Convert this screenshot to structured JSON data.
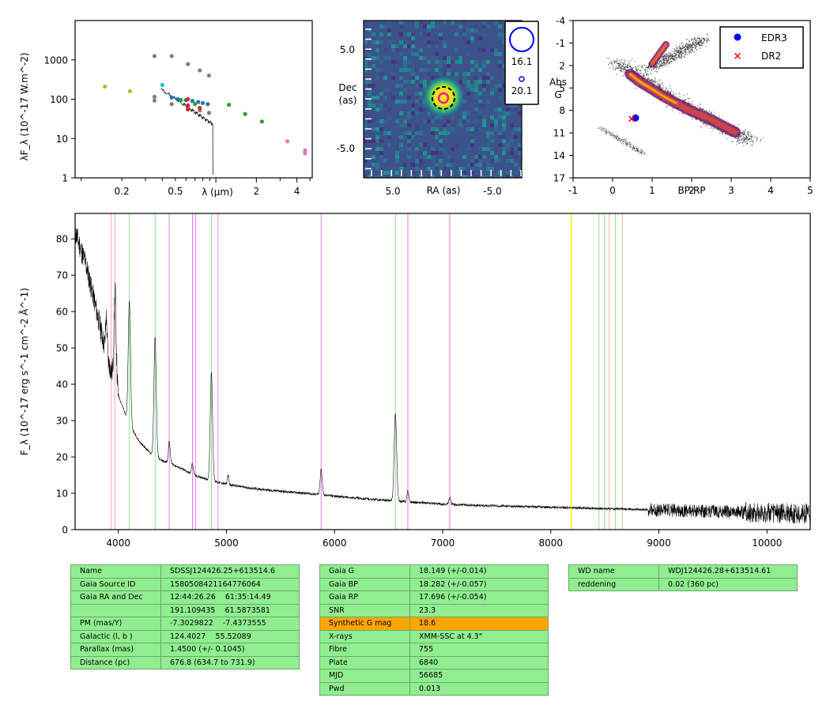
{
  "sed_panel": {
    "ylabel": "λF_λ (10^-17 W.m^-2)",
    "xlabel": "λ (μm)",
    "y_ticks": [
      "1",
      "10",
      "100",
      "1000"
    ],
    "x_ticks": [
      "0.2",
      "0.5",
      "2",
      "4"
    ],
    "points": [
      {
        "x": 0.15,
        "y": 210,
        "color": "#bcbd22"
      },
      {
        "x": 0.23,
        "y": 160,
        "color": "#bcbd22"
      },
      {
        "x": 0.35,
        "y": 1250,
        "color": "#7f7f7f"
      },
      {
        "x": 0.47,
        "y": 1250,
        "color": "#7f7f7f"
      },
      {
        "x": 0.62,
        "y": 780,
        "color": "#7f7f7f"
      },
      {
        "x": 0.76,
        "y": 540,
        "color": "#7f7f7f"
      },
      {
        "x": 0.89,
        "y": 400,
        "color": "#7f7f7f"
      },
      {
        "x": 0.35,
        "y": 115,
        "color": "#7f7f7f"
      },
      {
        "x": 0.35,
        "y": 92,
        "color": "#7f7f7f"
      },
      {
        "x": 0.47,
        "y": 75,
        "color": "#7f7f7f"
      },
      {
        "x": 0.62,
        "y": 60,
        "color": "#7f7f7f"
      },
      {
        "x": 0.76,
        "y": 52,
        "color": "#7f7f7f"
      },
      {
        "x": 0.89,
        "y": 45,
        "color": "#7f7f7f"
      },
      {
        "x": 0.4,
        "y": 230,
        "color": "#17becf"
      },
      {
        "x": 0.47,
        "y": 110,
        "color": "#1f77b4"
      },
      {
        "x": 0.52,
        "y": 100,
        "color": "#1f77b4"
      },
      {
        "x": 0.6,
        "y": 95,
        "color": "#1f77b4"
      },
      {
        "x": 0.67,
        "y": 90,
        "color": "#1f77b4"
      },
      {
        "x": 0.74,
        "y": 85,
        "color": "#1f77b4"
      },
      {
        "x": 0.8,
        "y": 80,
        "color": "#1f77b4"
      },
      {
        "x": 0.87,
        "y": 75,
        "color": "#1f77b4"
      },
      {
        "x": 0.62,
        "y": 100,
        "color": "#d62728"
      },
      {
        "x": 0.62,
        "y": 70,
        "color": "#d62728"
      },
      {
        "x": 0.62,
        "y": 55,
        "color": "#d62728"
      },
      {
        "x": 0.76,
        "y": 60,
        "color": "#d62728"
      },
      {
        "x": 0.55,
        "y": 95,
        "color": "#2ca02c"
      },
      {
        "x": 0.7,
        "y": 75,
        "color": "#2ca02c"
      },
      {
        "x": 1.25,
        "y": 72,
        "color": "#2ca02c"
      },
      {
        "x": 1.65,
        "y": 42,
        "color": "#2ca02c"
      },
      {
        "x": 2.2,
        "y": 27,
        "color": "#2ca02c"
      },
      {
        "x": 3.4,
        "y": 8.5,
        "color": "#e377c2"
      },
      {
        "x": 4.6,
        "y": 5.0,
        "color": "#e377c2"
      },
      {
        "x": 4.6,
        "y": 4.2,
        "color": "#e377c2"
      }
    ]
  },
  "image_panel": {
    "ylabel_line1": "Dec",
    "ylabel_line2": "(as)",
    "xlabel": "RA (as)",
    "y_ticks": [
      "5.0",
      "-5.0"
    ],
    "x_ticks": [
      "5.0",
      "-5.0"
    ],
    "legend": [
      {
        "label": "16.1",
        "color": "#0000ff"
      },
      {
        "label": "20.1",
        "color": "#0000ff"
      }
    ]
  },
  "cmd_panel": {
    "ylabel_line1": "Abs",
    "ylabel_line2": "G",
    "xlabel": "BP-RP",
    "y_ticks": [
      "-4",
      "-1",
      "2",
      "5",
      "8",
      "11",
      "14",
      "17"
    ],
    "x_ticks": [
      "-1",
      "0",
      "1",
      "2",
      "3",
      "4",
      "5"
    ],
    "legend": [
      {
        "label": "EDR3",
        "color": "#0000ff"
      },
      {
        "label": "DR2",
        "color": "#ff0000"
      }
    ],
    "points": [
      {
        "series": "EDR3",
        "bp_rp": 0.58,
        "abs_g": 9.0
      },
      {
        "series": "DR2",
        "bp_rp": 0.48,
        "abs_g": 9.1
      }
    ]
  },
  "chart_data": {
    "type": "line",
    "ylabel": "F_λ (10^-17 erg s^-1 cm^-2 Å^-1)",
    "xlim": [
      3600,
      10400
    ],
    "ylim": [
      0,
      87
    ],
    "x_ticks": [
      "4000",
      "5000",
      "6000",
      "7000",
      "8000",
      "9000",
      "10000"
    ],
    "y_ticks": [
      "0",
      "10",
      "20",
      "30",
      "40",
      "50",
      "60",
      "70",
      "80"
    ],
    "continuum": [
      [
        3600,
        82
      ],
      [
        3700,
        73
      ],
      [
        3800,
        60
      ],
      [
        3900,
        47
      ],
      [
        4000,
        37
      ],
      [
        4100,
        29
      ],
      [
        4200,
        24
      ],
      [
        4300,
        21
      ],
      [
        4400,
        19
      ],
      [
        4500,
        18
      ],
      [
        4600,
        16.5
      ],
      [
        4700,
        15
      ],
      [
        4800,
        14
      ],
      [
        4900,
        13.2
      ],
      [
        5000,
        12.5
      ],
      [
        5200,
        11.5
      ],
      [
        5400,
        10.8
      ],
      [
        5600,
        10.3
      ],
      [
        5800,
        9.8
      ],
      [
        6000,
        9.2
      ],
      [
        6200,
        8.7
      ],
      [
        6400,
        8.2
      ],
      [
        6600,
        7.8
      ],
      [
        6800,
        7.4
      ],
      [
        7000,
        7.0
      ],
      [
        7400,
        6.6
      ],
      [
        7800,
        6.3
      ],
      [
        8200,
        6.0
      ],
      [
        8600,
        5.7
      ],
      [
        9000,
        5.4
      ],
      [
        9400,
        5.1
      ],
      [
        9800,
        4.8
      ],
      [
        10000,
        4.6
      ],
      [
        10400,
        4.4
      ]
    ],
    "emission_lines": [
      {
        "x": 3889,
        "peak": 10,
        "width": 10
      },
      {
        "x": 3970,
        "peak": 26,
        "width": 14
      },
      {
        "x": 4102,
        "peak": 34,
        "width": 15
      },
      {
        "x": 4340,
        "peak": 33,
        "width": 15
      },
      {
        "x": 4471,
        "peak": 6,
        "width": 12
      },
      {
        "x": 4686,
        "peak": 3,
        "width": 12
      },
      {
        "x": 4861,
        "peak": 30,
        "width": 15
      },
      {
        "x": 5015,
        "peak": 2.5,
        "width": 10
      },
      {
        "x": 5876,
        "peak": 7,
        "width": 14
      },
      {
        "x": 6563,
        "peak": 24,
        "width": 16
      },
      {
        "x": 6678,
        "peak": 3,
        "width": 12
      },
      {
        "x": 7065,
        "peak": 2,
        "width": 12
      }
    ],
    "reference_lines": [
      {
        "x": 3934,
        "color": "#ff9999"
      },
      {
        "x": 3968,
        "color": "#ff9999"
      },
      {
        "x": 4102,
        "color": "#80e080"
      },
      {
        "x": 4340,
        "color": "#80e080"
      },
      {
        "x": 4471,
        "color": "#e070e0"
      },
      {
        "x": 4686,
        "color": "#e070e0"
      },
      {
        "x": 4713,
        "color": "#e070e0"
      },
      {
        "x": 4861,
        "color": "#80e080"
      },
      {
        "x": 4922,
        "color": "#e070e0"
      },
      {
        "x": 5876,
        "color": "#e070e0"
      },
      {
        "x": 6563,
        "color": "#80e080"
      },
      {
        "x": 6678,
        "color": "#e070e0"
      },
      {
        "x": 7065,
        "color": "#e070e0"
      },
      {
        "x": 8190,
        "color": "#ffff00"
      },
      {
        "x": 8446,
        "color": "#80e080"
      },
      {
        "x": 8498,
        "color": "#80e080"
      },
      {
        "x": 8542,
        "color": "#ff9999"
      },
      {
        "x": 8598,
        "color": "#80e080"
      },
      {
        "x": 8662,
        "color": "#d2b48c"
      }
    ]
  },
  "tables": {
    "left": [
      [
        "Name",
        "SDSSJ124426.25+613514.6"
      ],
      [
        "Gaia Source ID",
        "1580508421164776064"
      ],
      [
        "Gaia RA and Dec",
        "12:44:26.26    61:35:14.49"
      ],
      [
        "",
        "191.109435    61.5873581"
      ],
      [
        "PM (mas/Y)",
        "-7.3029822    -7.4373555"
      ],
      [
        "Galactic (l, b )",
        "124.4027    55.52089"
      ],
      [
        "Parallax (mas)",
        "1.4500 (+/- 0.1045)"
      ],
      [
        "Distance (pc)",
        "676.8 (634.7 to 731.9)"
      ]
    ],
    "middle": [
      [
        "Gaia G",
        "18.149 (+/-0.014)"
      ],
      [
        "Gaia BP",
        "18.282 (+/-0.057)"
      ],
      [
        "Gaia RP",
        "17.696 (+/-0.054)"
      ],
      [
        "SNR",
        "23.3"
      ],
      [
        "Synthetic G mag",
        "18.6"
      ],
      [
        "X-rays",
        "XMM-SSC at 4.3\""
      ],
      [
        "Fibre",
        "755"
      ],
      [
        "Plate",
        "6840"
      ],
      [
        "MJD",
        "56685"
      ],
      [
        "Pwd",
        "0.013"
      ]
    ],
    "middle_highlight_row": 4,
    "highlight_color": "#ffa500",
    "right": [
      [
        "WD name",
        "WDJ124426.28+613514.61"
      ],
      [
        "reddening",
        "0.02 (360 pc)"
      ]
    ]
  }
}
